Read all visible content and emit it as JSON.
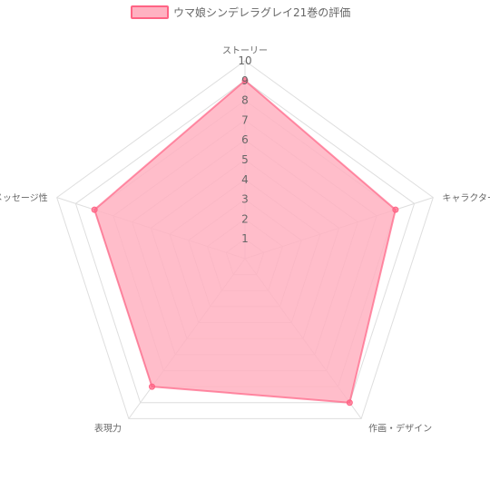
{
  "chart_data": {
    "type": "radar",
    "legend_position": "top",
    "series": [
      {
        "name": "ウマ娘シンデレラグレイ21巻の評価",
        "values": [
          9,
          8,
          9,
          8,
          8
        ],
        "fill_color": "#ffb1c1",
        "border_color": "#ff6384"
      }
    ],
    "categories": [
      "ストーリー",
      "キャラクター",
      "作画・デザイン",
      "表現力",
      "メッセージ性"
    ],
    "r_min": 0,
    "r_max": 10,
    "ticks": [
      "1",
      "2",
      "3",
      "4",
      "5",
      "6",
      "7",
      "8",
      "9",
      "10"
    ],
    "grid": true
  }
}
